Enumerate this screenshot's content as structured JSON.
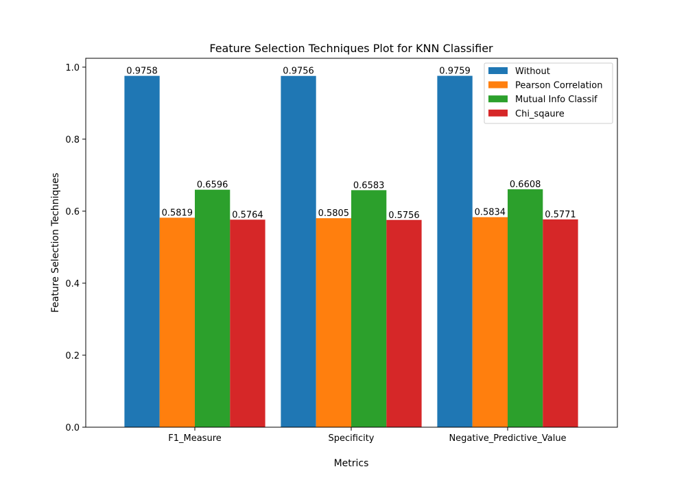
{
  "chart_data": {
    "type": "bar",
    "title": "Feature Selection Techniques Plot for KNN Classifier",
    "xlabel": "Metrics",
    "ylabel": "Feature Selection Techniques",
    "categories": [
      "F1_Measure",
      "Specificity",
      "Negative_Predictive_Value"
    ],
    "series": [
      {
        "name": "Without",
        "color": "#1f77b4",
        "values": [
          0.9758,
          0.9756,
          0.9759
        ]
      },
      {
        "name": "Pearson Correlation",
        "color": "#ff7f0e",
        "values": [
          0.5819,
          0.5805,
          0.5834
        ]
      },
      {
        "name": "Mutual Info Classif",
        "color": "#2ca02c",
        "values": [
          0.6596,
          0.6583,
          0.6608
        ]
      },
      {
        "name": "Chi_sqaure",
        "color": "#d62728",
        "values": [
          0.5764,
          0.5756,
          0.5771
        ]
      }
    ],
    "data_labels": [
      [
        "0.9758",
        "0.9756",
        "0.9759"
      ],
      [
        "0.5819",
        "0.5805",
        "0.5834"
      ],
      [
        "0.6596",
        "0.6583",
        "0.6608"
      ],
      [
        "0.5764",
        "0.5756",
        "0.5771"
      ]
    ],
    "y_ticks": [
      "0.0",
      "0.2",
      "0.4",
      "0.6",
      "0.8",
      "1.0"
    ],
    "ylim": [
      0,
      1.0246
    ],
    "grid": false,
    "legend_position": "top-right"
  }
}
